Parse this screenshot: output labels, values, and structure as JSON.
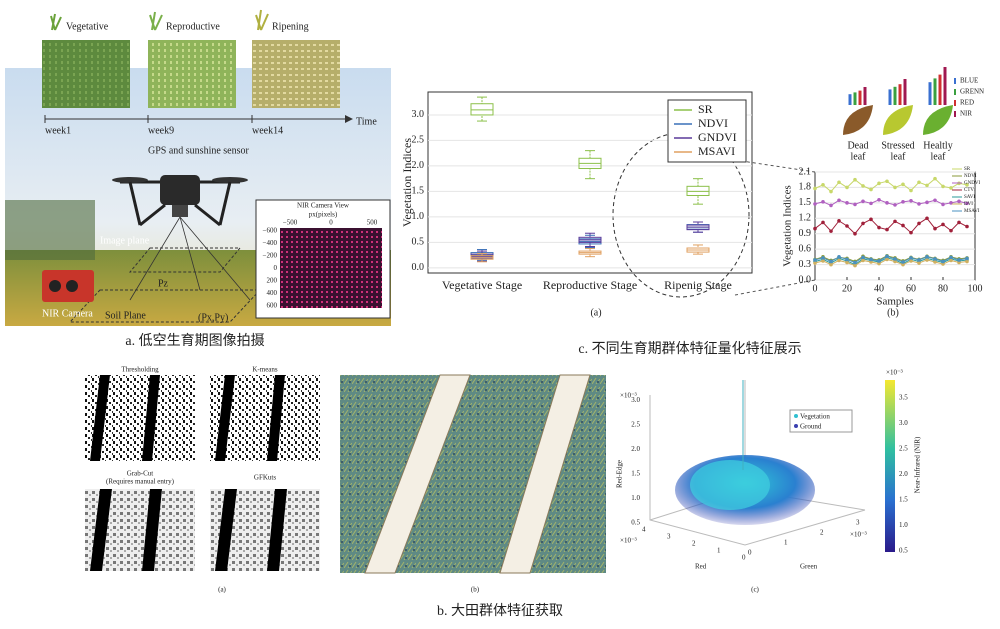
{
  "panel_a": {
    "stages": [
      "Vegetative",
      "Reproductive",
      "Ripening"
    ],
    "weeks": [
      "week1",
      "week9",
      "week14"
    ],
    "time": "Time",
    "sensor": "GPS and sunshine sensor",
    "image_plane": "Image plane",
    "pz": "Pz",
    "soil_plane": "Soil Plane",
    "point": "(Px,Py)",
    "camera": "NIR Camera",
    "inset": {
      "title": "NIR Camera View",
      "xlabel": "px(pixels)",
      "xticks": [
        "−500",
        "0",
        "500"
      ],
      "yticks": [
        "−600",
        "−400",
        "−200",
        "0",
        "200",
        "400",
        "600"
      ]
    },
    "caption": "a. 低空生育期图像拍摄"
  },
  "panel_c": {
    "caption": "c. 不同生育期群体特征量化特征展示",
    "leaves": [
      [
        "Dead",
        "leaf"
      ],
      [
        "Stressed",
        "leaf"
      ],
      [
        "Healtly",
        "leaf"
      ]
    ],
    "bands": [
      "BLUE",
      "GRENN",
      "RED",
      "NIR"
    ]
  },
  "chart_data": [
    {
      "type": "box",
      "caption": "(a)",
      "ylabel": "Vegetation Indices",
      "categories": [
        "Vegetative Stage",
        "Reproductive Stage",
        "Ripenig Stage"
      ],
      "ylim": [
        -0.1,
        3.45
      ],
      "yticks": [
        {
          "value": 0,
          "label": "0.0"
        },
        0.5,
        {
          "value": 1,
          "label": "1.0"
        },
        1.5,
        {
          "value": 2,
          "label": "2.0"
        },
        2.5,
        {
          "value": 3,
          "label": "3.0"
        }
      ],
      "legend": "upper right",
      "series": [
        {
          "name": "SR",
          "color": "#8cc04a",
          "min": [
            2.88,
            1.75,
            1.25
          ],
          "q1": [
            3.0,
            1.95,
            1.42
          ],
          "median": [
            3.1,
            2.05,
            1.5
          ],
          "q3": [
            3.22,
            2.15,
            1.6
          ],
          "max": [
            3.35,
            2.3,
            1.75
          ]
        },
        {
          "name": "NDVI",
          "color": "#3a70b8",
          "min": [
            0.15,
            0.4,
            0.7
          ],
          "q1": [
            0.2,
            0.47,
            0.76
          ],
          "median": [
            0.25,
            0.52,
            0.8
          ],
          "q3": [
            0.3,
            0.57,
            0.85
          ],
          "max": [
            0.36,
            0.64,
            0.9
          ]
        },
        {
          "name": "GNDVI",
          "color": "#5a3a9a",
          "min": [
            0.13,
            0.42,
            0.7
          ],
          "q1": [
            0.18,
            0.5,
            0.75
          ],
          "median": [
            0.22,
            0.55,
            0.8
          ],
          "q3": [
            0.27,
            0.6,
            0.84
          ],
          "max": [
            0.33,
            0.68,
            0.9
          ]
        },
        {
          "name": "MSAVI",
          "color": "#e0a060",
          "min": [
            0.12,
            0.22,
            0.27
          ],
          "q1": [
            0.17,
            0.27,
            0.31
          ],
          "median": [
            0.2,
            0.3,
            0.35
          ],
          "q3": [
            0.24,
            0.33,
            0.39
          ],
          "max": [
            0.28,
            0.38,
            0.45
          ]
        }
      ]
    },
    {
      "type": "line",
      "caption": "(b)",
      "xlabel": "Samples",
      "ylabel": "Vegetation Indices",
      "x": [
        0,
        5,
        10,
        15,
        20,
        25,
        30,
        35,
        40,
        45,
        50,
        55,
        60,
        65,
        70,
        75,
        80,
        85,
        90,
        95
      ],
      "xlim": [
        0,
        100
      ],
      "ylim": [
        0,
        2.1
      ],
      "xticks": [
        0,
        20,
        40,
        60,
        80,
        100
      ],
      "yticks": [
        {
          "value": 0,
          "label": "0.0"
        },
        0.3,
        0.6,
        0.9,
        1.2,
        1.5,
        1.8,
        2.1
      ],
      "series": [
        {
          "name": "SR",
          "color": "#c8d86a",
          "values": [
            1.78,
            1.85,
            1.72,
            1.9,
            1.8,
            1.95,
            1.83,
            1.76,
            1.88,
            1.92,
            1.8,
            1.86,
            1.74,
            1.9,
            1.84,
            1.97,
            1.82,
            1.79,
            1.88,
            1.85
          ]
        },
        {
          "name": "NDVI",
          "color": "#8a9a3a",
          "values": [
            0.4,
            0.45,
            0.38,
            0.44,
            0.42,
            0.36,
            0.46,
            0.41,
            0.39,
            0.47,
            0.43,
            0.37,
            0.44,
            0.4,
            0.46,
            0.42,
            0.38,
            0.45,
            0.41,
            0.43
          ]
        },
        {
          "name": "GNDVI",
          "color": "#b060c0",
          "values": [
            1.48,
            1.52,
            1.45,
            1.55,
            1.5,
            1.47,
            1.53,
            1.49,
            1.56,
            1.5,
            1.46,
            1.52,
            1.54,
            1.48,
            1.51,
            1.55,
            1.47,
            1.5,
            1.53,
            1.49
          ]
        },
        {
          "name": "CTVI",
          "color": "#a0203a",
          "values": [
            1.0,
            1.12,
            0.95,
            1.15,
            1.05,
            0.9,
            1.1,
            1.18,
            1.02,
            0.98,
            1.14,
            1.06,
            0.92,
            1.1,
            1.2,
            1.0,
            1.08,
            0.96,
            1.12,
            1.04
          ]
        },
        {
          "name": "SAVI",
          "color": "#2a9a9a",
          "values": [
            0.36,
            0.4,
            0.33,
            0.42,
            0.37,
            0.3,
            0.41,
            0.38,
            0.35,
            0.43,
            0.39,
            0.32,
            0.4,
            0.36,
            0.42,
            0.38,
            0.34,
            0.41,
            0.37,
            0.39
          ]
        },
        {
          "name": "DVI",
          "color": "#d0b060",
          "values": [
            0.33,
            0.37,
            0.3,
            0.38,
            0.34,
            0.28,
            0.38,
            0.35,
            0.32,
            0.4,
            0.36,
            0.3,
            0.37,
            0.33,
            0.39,
            0.35,
            0.31,
            0.38,
            0.34,
            0.36
          ]
        },
        {
          "name": "MSAVI",
          "color": "#4a90c0",
          "values": [
            0.39,
            0.43,
            0.36,
            0.45,
            0.4,
            0.34,
            0.44,
            0.4,
            0.37,
            0.46,
            0.41,
            0.35,
            0.43,
            0.39,
            0.45,
            0.41,
            0.36,
            0.44,
            0.39,
            0.42
          ]
        }
      ]
    }
  ],
  "panel_b": {
    "methods": [
      "Thresholding",
      "K-means",
      "Grab-Cut",
      "(Requires manual entry)",
      "GFKuts"
    ],
    "captions": [
      "(a)",
      "(b)",
      "(c)"
    ],
    "scatter": {
      "legend": [
        "Vegetation",
        "Ground"
      ],
      "zlabel": "Red-Edge",
      "xlabel": "Green",
      "ylabel": "Red",
      "clabel": "Near-Infrared (NIR)",
      "exponent": "×10⁻³",
      "zticks": [
        "0.5",
        "1.0",
        "1.5",
        "2.0",
        "2.5",
        "3.0"
      ],
      "xticks": [
        "0",
        "1",
        "2",
        "3"
      ],
      "yticks": [
        "4",
        "3",
        "2",
        "1",
        "0"
      ],
      "cticks": [
        "0.5",
        "1.0",
        "1.5",
        "2.0",
        "2.5",
        "3.0",
        "3.5"
      ]
    },
    "caption": "b. 大田群体特征获取"
  }
}
